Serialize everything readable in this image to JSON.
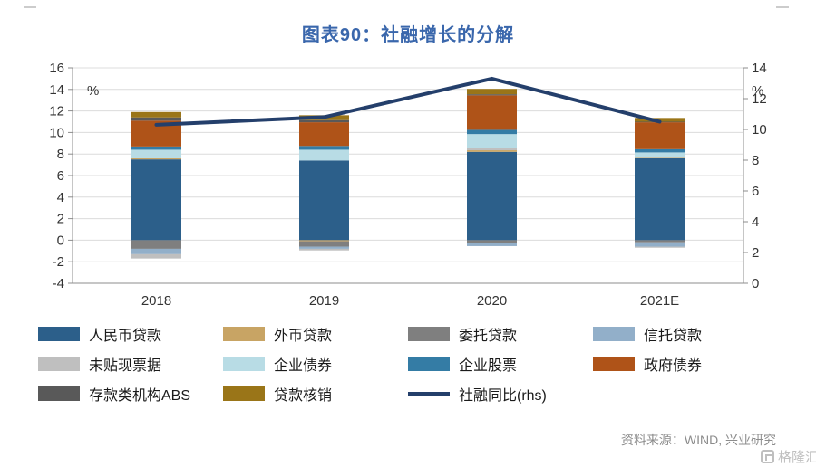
{
  "header": {
    "title": "图表90：社融增长的分解"
  },
  "footer": {
    "source": "资料来源：WIND, 兴业研究",
    "watermark": "格隆汇"
  },
  "legend": {
    "items": [
      {
        "label": "人民币贷款",
        "color": "#2C5F8A",
        "type": "box"
      },
      {
        "label": "外币贷款",
        "color": "#C8A464",
        "type": "box"
      },
      {
        "label": "委托贷款",
        "color": "#7F7F7F",
        "type": "box"
      },
      {
        "label": "信托贷款",
        "color": "#92AFC9",
        "type": "box"
      },
      {
        "label": "未贴现票据",
        "color": "#BFBFBF",
        "type": "box"
      },
      {
        "label": "企业债券",
        "color": "#B8DCE5",
        "type": "box"
      },
      {
        "label": "企业股票",
        "color": "#347CA5",
        "type": "box"
      },
      {
        "label": "政府债券",
        "color": "#AF5318",
        "type": "box"
      },
      {
        "label": "存款类机构ABS",
        "color": "#595959",
        "type": "box"
      },
      {
        "label": "贷款核销",
        "color": "#9A7518",
        "type": "box"
      },
      {
        "label": "社融同比(rhs)",
        "color": "#243F6B",
        "type": "line"
      }
    ]
  },
  "chart_data": {
    "type": "bar",
    "subtype": "stacked-bar-with-line",
    "title": "图表90：社融增长的分解",
    "categories": [
      "2018",
      "2019",
      "2020",
      "2021E"
    ],
    "left_axis": {
      "label": "%",
      "min": -4,
      "max": 16,
      "tick_step": 2
    },
    "right_axis": {
      "label": "%",
      "min": 0,
      "max": 14,
      "tick_step": 2
    },
    "grid": true,
    "series": [
      {
        "name": "人民币贷款",
        "color": "#2C5F8A",
        "values": [
          7.5,
          7.4,
          8.2,
          7.6
        ]
      },
      {
        "name": "外币贷款",
        "color": "#C8A464",
        "values": [
          0.1,
          -0.1,
          0.15,
          0.05
        ]
      },
      {
        "name": "委托贷款",
        "color": "#7F7F7F",
        "values": [
          -0.8,
          -0.5,
          -0.25,
          -0.2
        ]
      },
      {
        "name": "信托贷款",
        "color": "#92AFC9",
        "values": [
          -0.5,
          -0.2,
          -0.3,
          -0.4
        ]
      },
      {
        "name": "未贴现票据",
        "color": "#BFBFBF",
        "values": [
          -0.4,
          -0.15,
          0.2,
          -0.1
        ]
      },
      {
        "name": "企业债券",
        "color": "#B8DCE5",
        "values": [
          0.8,
          1.0,
          1.3,
          0.5
        ]
      },
      {
        "name": "企业股票",
        "color": "#347CA5",
        "values": [
          0.3,
          0.35,
          0.4,
          0.3
        ]
      },
      {
        "name": "政府债券",
        "color": "#AF5318",
        "values": [
          2.4,
          2.2,
          3.2,
          2.5
        ]
      },
      {
        "name": "存款类机构ABS",
        "color": "#595959",
        "values": [
          0.3,
          0.2,
          0.1,
          0.05
        ]
      },
      {
        "name": "贷款核销",
        "color": "#9A7518",
        "values": [
          0.5,
          0.45,
          0.5,
          0.35
        ]
      }
    ],
    "line": {
      "name": "社融同比(rhs)",
      "axis": "right",
      "color": "#243F6B",
      "values": [
        10.3,
        10.8,
        13.3,
        10.5
      ]
    }
  }
}
